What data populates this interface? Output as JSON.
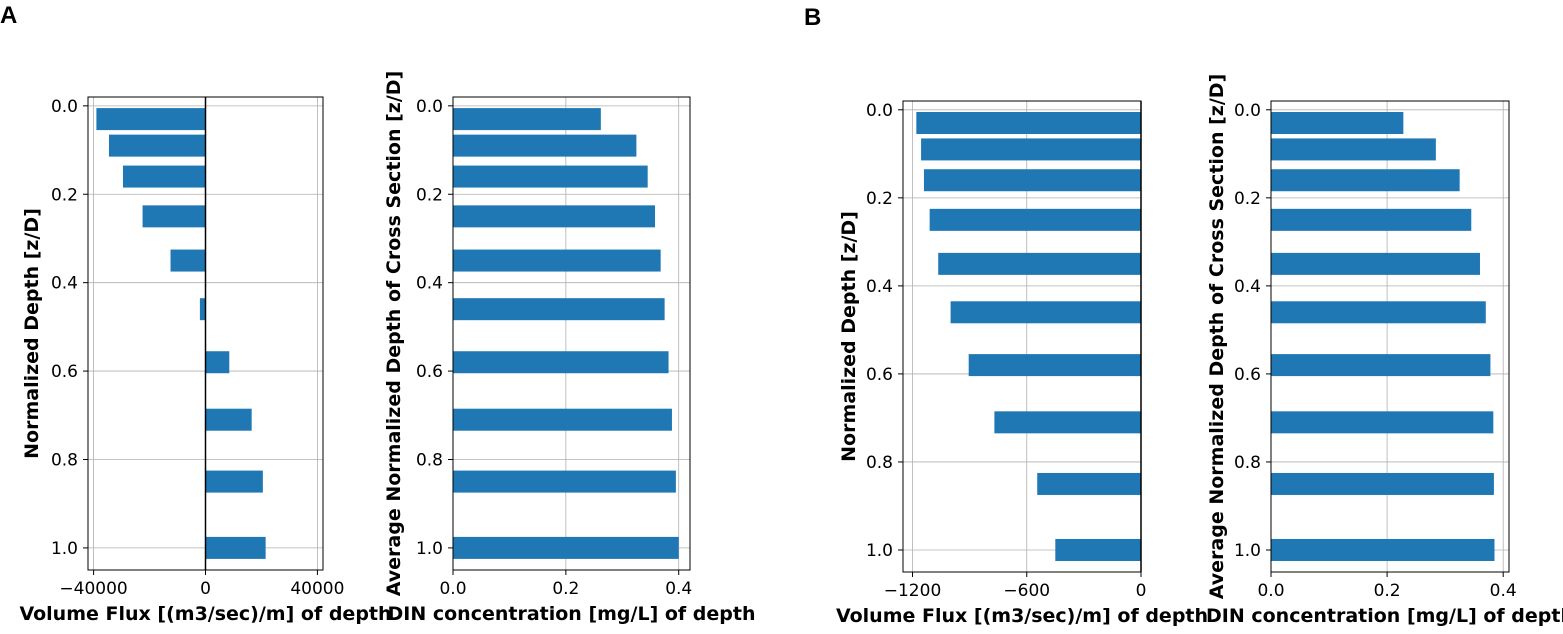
{
  "panels": [
    "A",
    "B"
  ],
  "chart_data": [
    {
      "panel": "A",
      "type": "bar",
      "orientation": "horizontal",
      "xlabel": "Volume Flux [(m3/sec)/m] of depth",
      "ylabel": "Normalized Depth [z/D]",
      "xlim": [
        -42000,
        42000
      ],
      "ylim": [
        1.05,
        -0.02
      ],
      "xticks": [
        -40000,
        0,
        40000
      ],
      "xticklabels": [
        "−40000",
        "0",
        "40000"
      ],
      "yticks": [
        0.0,
        0.2,
        0.4,
        0.6,
        0.8,
        1.0
      ],
      "yticklabels": [
        "0.0",
        "0.2",
        "0.4",
        "0.6",
        "0.8",
        "1.0"
      ],
      "zero_line": true,
      "grid": true,
      "color": "#1f77b4",
      "depths": [
        0.03,
        0.09,
        0.16,
        0.25,
        0.35,
        0.46,
        0.58,
        0.71,
        0.85,
        1.0
      ],
      "values": [
        -39000,
        -34500,
        -29500,
        -22500,
        -12500,
        -2000,
        8500,
        16500,
        20500,
        21500
      ]
    },
    {
      "panel": "A",
      "type": "bar",
      "orientation": "horizontal",
      "xlabel": "DIN concentration [mg/L] of depth",
      "ylabel": "Average Normalized Depth of Cross Section [z/D]",
      "xlim": [
        0.0,
        0.42
      ],
      "ylim": [
        1.05,
        -0.02
      ],
      "xticks": [
        0.0,
        0.2,
        0.4
      ],
      "xticklabels": [
        "0.0",
        "0.2",
        "0.4"
      ],
      "yticks": [
        0.0,
        0.2,
        0.4,
        0.6,
        0.8,
        1.0
      ],
      "yticklabels": [
        "0.0",
        "0.2",
        "0.4",
        "0.6",
        "0.8",
        "1.0"
      ],
      "zero_line": false,
      "grid": true,
      "color": "#1f77b4",
      "depths": [
        0.03,
        0.09,
        0.16,
        0.25,
        0.35,
        0.46,
        0.58,
        0.71,
        0.85,
        1.0
      ],
      "values": [
        0.262,
        0.325,
        0.345,
        0.358,
        0.368,
        0.375,
        0.382,
        0.388,
        0.395,
        0.4
      ]
    },
    {
      "panel": "B",
      "type": "bar",
      "orientation": "horizontal",
      "xlabel": "Volume Flux [(m3/sec)/m] of depth",
      "ylabel": "Normalized Depth [z/D]",
      "xlim": [
        -1250,
        0
      ],
      "ylim": [
        1.05,
        -0.02
      ],
      "xticks": [
        -1200,
        -600,
        0
      ],
      "xticklabels": [
        "−1200",
        "−600",
        "0"
      ],
      "yticks": [
        0.0,
        0.2,
        0.4,
        0.6,
        0.8,
        1.0
      ],
      "yticklabels": [
        "0.0",
        "0.2",
        "0.4",
        "0.6",
        "0.8",
        "1.0"
      ],
      "zero_line": true,
      "grid": true,
      "color": "#1f77b4",
      "depths": [
        0.03,
        0.09,
        0.16,
        0.25,
        0.35,
        0.46,
        0.58,
        0.71,
        0.85,
        1.0
      ],
      "values": [
        -1180,
        -1155,
        -1140,
        -1110,
        -1065,
        -1000,
        -905,
        -770,
        -545,
        -450
      ]
    },
    {
      "panel": "B",
      "type": "bar",
      "orientation": "horizontal",
      "xlabel": "DIN concentration [mg/L] of depth",
      "ylabel": "Average Normalized Depth of Cross Section [z/D]",
      "xlim": [
        0.0,
        0.41
      ],
      "ylim": [
        1.05,
        -0.02
      ],
      "xticks": [
        0.0,
        0.2,
        0.4
      ],
      "xticklabels": [
        "0.0",
        "0.2",
        "0.4"
      ],
      "yticks": [
        0.0,
        0.2,
        0.4,
        0.6,
        0.8,
        1.0
      ],
      "yticklabels": [
        "0.0",
        "0.2",
        "0.4",
        "0.6",
        "0.8",
        "1.0"
      ],
      "zero_line": false,
      "grid": true,
      "color": "#1f77b4",
      "depths": [
        0.03,
        0.09,
        0.16,
        0.25,
        0.35,
        0.46,
        0.58,
        0.71,
        0.85,
        1.0
      ],
      "values": [
        0.228,
        0.284,
        0.325,
        0.345,
        0.36,
        0.37,
        0.378,
        0.383,
        0.384,
        0.385
      ]
    }
  ]
}
